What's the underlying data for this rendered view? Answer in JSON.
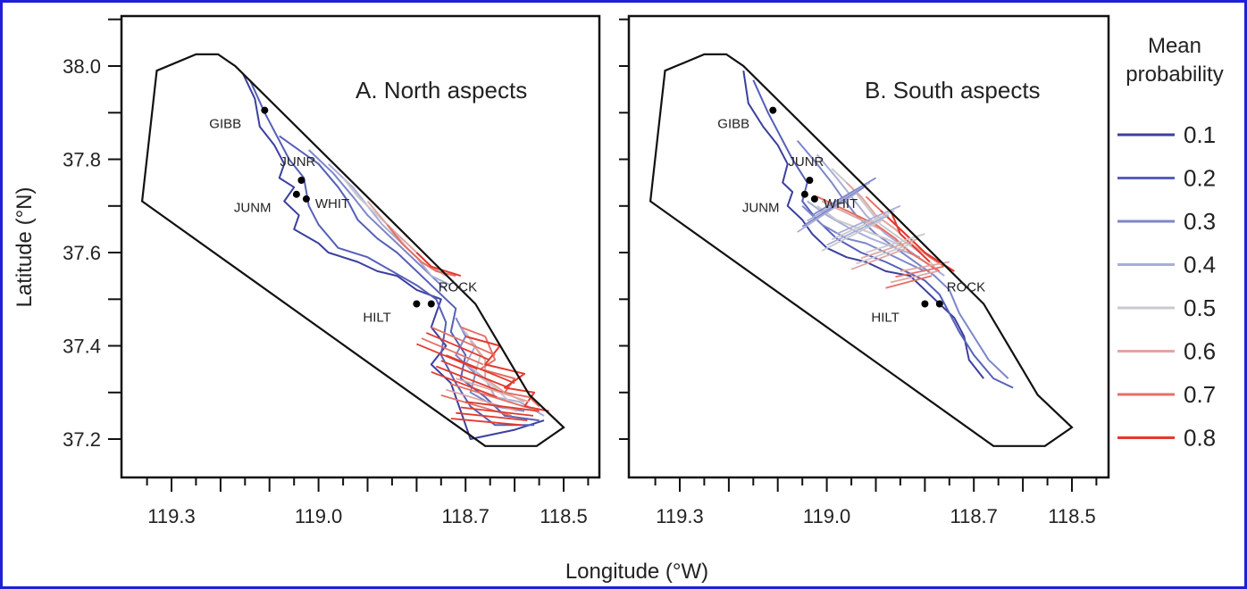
{
  "figure": {
    "xlabel": "Longitude (°W)",
    "ylabel": "Latitude (°N)"
  },
  "axes": {
    "x_ticks": [
      "119.3",
      "119.0",
      "118.7",
      "118.5"
    ],
    "x_tick_values": [
      119.3,
      119.0,
      118.7,
      118.5
    ],
    "y_ticks": [
      "38.0",
      "37.8",
      "37.6",
      "37.4",
      "37.2"
    ],
    "y_tick_values": [
      38.0,
      37.8,
      37.6,
      37.4,
      37.2
    ]
  },
  "panels": [
    {
      "title": "A. North aspects",
      "sites": [
        {
          "name": "GIBB",
          "lon": 119.11,
          "lat": 37.905
        },
        {
          "name": "JUNR",
          "lon": 119.035,
          "lat": 37.755
        },
        {
          "name": "JUNM",
          "lon": 119.045,
          "lat": 37.725
        },
        {
          "name": "WHIT",
          "lon": 119.025,
          "lat": 37.715
        },
        {
          "name": "HILT",
          "lon": 118.8,
          "lat": 37.49
        },
        {
          "name": "ROCK",
          "lon": 118.77,
          "lat": 37.49
        }
      ]
    },
    {
      "title": "B. South aspects",
      "sites": [
        {
          "name": "GIBB",
          "lon": 119.11,
          "lat": 37.905
        },
        {
          "name": "JUNR",
          "lon": 119.035,
          "lat": 37.755
        },
        {
          "name": "JUNM",
          "lon": 119.045,
          "lat": 37.725
        },
        {
          "name": "WHIT",
          "lon": 119.025,
          "lat": 37.715
        },
        {
          "name": "HILT",
          "lon": 118.8,
          "lat": 37.49
        },
        {
          "name": "ROCK",
          "lon": 118.77,
          "lat": 37.49
        }
      ]
    }
  ],
  "boundary": [
    [
      119.33,
      37.99
    ],
    [
      119.25,
      38.025
    ],
    [
      119.205,
      38.025
    ],
    [
      119.17,
      38.0
    ],
    [
      118.68,
      37.49
    ],
    [
      118.57,
      37.295
    ],
    [
      118.5,
      37.225
    ],
    [
      118.555,
      37.185
    ],
    [
      118.66,
      37.185
    ],
    [
      119.36,
      37.71
    ]
  ],
  "legend": {
    "title_line1": "Mean",
    "title_line2": "probability",
    "entries": [
      {
        "label": "0.1",
        "color": "#3b3f9e"
      },
      {
        "label": "0.2",
        "color": "#5660b8"
      },
      {
        "label": "0.3",
        "color": "#7d86c8"
      },
      {
        "label": "0.4",
        "color": "#a9aed6"
      },
      {
        "label": "0.5",
        "color": "#c9c9cf"
      },
      {
        "label": "0.6",
        "color": "#e0a6a2"
      },
      {
        "label": "0.7",
        "color": "#e57066"
      },
      {
        "label": "0.8",
        "color": "#e23a2e"
      }
    ]
  }
}
